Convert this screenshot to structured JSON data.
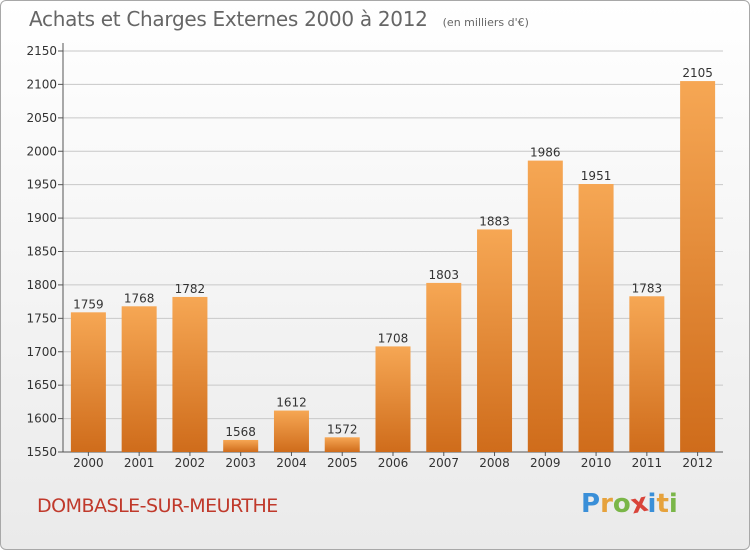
{
  "header": {
    "title": "Achats et Charges Externes 2000 à 2012",
    "subtitle": "(en milliers d'€)"
  },
  "footer": {
    "commune": "DOMBASLE-SUR-MEURTHE",
    "brand_letters": [
      "P",
      "r",
      "o",
      "x",
      "i",
      "t",
      "i"
    ],
    "brand_colors": [
      "#3a8fd8",
      "#e6a23c",
      "#7ab648",
      "#d9443a",
      "#3a8fd8",
      "#e6a23c",
      "#7ab648"
    ]
  },
  "colors": {
    "bar_top": "#f6a754",
    "bar_bottom": "#cf6c1b",
    "grid": "#c8c8c8",
    "commune_text": "#c0392b"
  },
  "chart_data": {
    "type": "bar",
    "title": "Achats et Charges Externes 2000 à 2012",
    "subtitle": "(en milliers d'€)",
    "categories": [
      "2000",
      "2001",
      "2002",
      "2003",
      "2004",
      "2005",
      "2006",
      "2007",
      "2008",
      "2009",
      "2010",
      "2011",
      "2012"
    ],
    "values": [
      1759,
      1768,
      1782,
      1568,
      1612,
      1572,
      1708,
      1803,
      1883,
      1986,
      1951,
      1783,
      2105
    ],
    "ylim": [
      1550,
      2150
    ],
    "yticks": [
      1550,
      1600,
      1650,
      1700,
      1750,
      1800,
      1850,
      1900,
      1950,
      2000,
      2050,
      2100,
      2150
    ],
    "grid": true,
    "data_labels": true
  }
}
